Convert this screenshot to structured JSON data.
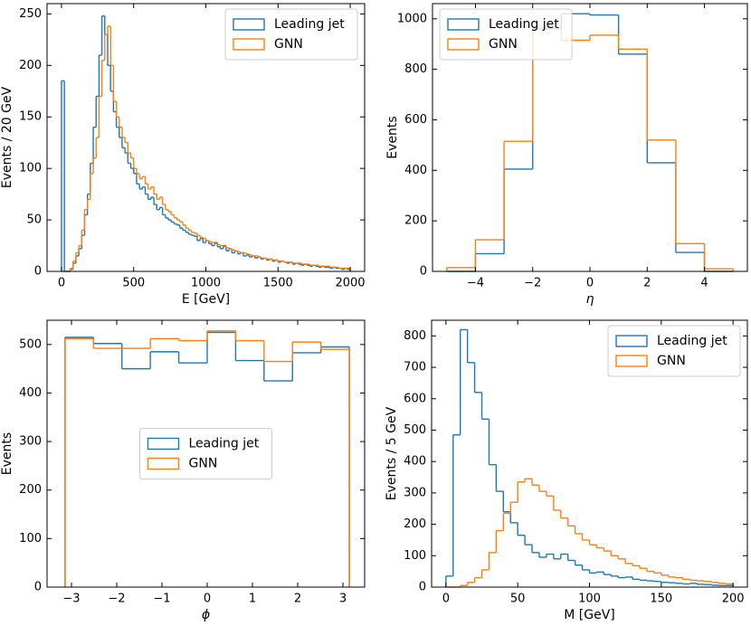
{
  "chart_data": [
    {
      "type": "histogram",
      "xlabel": "E [GeV]",
      "ylabel": "Events / 20 GeV",
      "legend": "upper right",
      "xlim": [
        -100,
        2100
      ],
      "ylim": [
        0,
        260
      ],
      "xticks": [
        0,
        500,
        1000,
        1500,
        2000
      ],
      "yticks": [
        0,
        50,
        100,
        150,
        200,
        250
      ],
      "bins": [
        0,
        20,
        40,
        60,
        80,
        100,
        120,
        140,
        160,
        180,
        200,
        220,
        240,
        260,
        280,
        300,
        320,
        340,
        360,
        380,
        400,
        420,
        440,
        460,
        480,
        500,
        520,
        540,
        560,
        580,
        600,
        620,
        640,
        660,
        680,
        700,
        720,
        740,
        760,
        780,
        800,
        820,
        840,
        860,
        880,
        900,
        920,
        940,
        960,
        980,
        1000,
        1020,
        1040,
        1060,
        1080,
        1100,
        1120,
        1140,
        1160,
        1180,
        1200,
        1220,
        1240,
        1260,
        1280,
        1300,
        1320,
        1340,
        1360,
        1380,
        1400,
        1420,
        1440,
        1460,
        1480,
        1500,
        1520,
        1540,
        1560,
        1580,
        1600,
        1620,
        1640,
        1660,
        1680,
        1700,
        1720,
        1740,
        1760,
        1780,
        1800,
        1820,
        1840,
        1860,
        1880,
        1900,
        1920,
        1940,
        1960,
        1980,
        2000
      ],
      "series": [
        {
          "name": "Leading jet",
          "color": "#1f77b4",
          "values": [
            185,
            0,
            0,
            2,
            8,
            15,
            22,
            35,
            55,
            75,
            105,
            140,
            170,
            210,
            248,
            230,
            200,
            175,
            155,
            140,
            130,
            120,
            115,
            105,
            100,
            95,
            85,
            80,
            82,
            75,
            70,
            72,
            65,
            60,
            62,
            55,
            52,
            50,
            48,
            46,
            45,
            42,
            40,
            38,
            36,
            35,
            34,
            30,
            32,
            28,
            30,
            27,
            25,
            28,
            24,
            22,
            25,
            20,
            22,
            18,
            20,
            17,
            18,
            15,
            16,
            14,
            15,
            13,
            14,
            12,
            13,
            11,
            12,
            10,
            11,
            9,
            10,
            9,
            8,
            9,
            7,
            8,
            7,
            6,
            7,
            6,
            5,
            6,
            5,
            4,
            5,
            4,
            4,
            3,
            4,
            3,
            3,
            2,
            3,
            2
          ]
        },
        {
          "name": "GNN",
          "color": "#ff7f0e",
          "values": [
            0,
            0,
            0,
            3,
            10,
            18,
            25,
            40,
            60,
            70,
            95,
            110,
            130,
            170,
            205,
            230,
            238,
            200,
            165,
            150,
            140,
            130,
            125,
            115,
            110,
            100,
            95,
            90,
            92,
            85,
            80,
            82,
            75,
            70,
            72,
            65,
            60,
            58,
            55,
            52,
            50,
            48,
            45,
            42,
            40,
            38,
            37,
            35,
            33,
            32,
            30,
            29,
            28,
            27,
            26,
            25,
            24,
            23,
            22,
            21,
            20,
            19,
            18,
            18,
            17,
            16,
            15,
            15,
            14,
            13,
            13,
            12,
            12,
            11,
            11,
            10,
            10,
            9,
            9,
            9,
            8,
            8,
            8,
            7,
            7,
            7,
            6,
            6,
            6,
            5,
            5,
            5,
            5,
            4,
            4,
            4,
            3,
            3,
            3,
            3
          ]
        }
      ]
    },
    {
      "type": "histogram",
      "xlabel": "η",
      "ylabel": "Events",
      "legend": "upper left",
      "xlim": [
        -5.5,
        5.5
      ],
      "ylim": [
        0,
        1060
      ],
      "xticks": [
        {
          "value": -4,
          "label": "−4"
        },
        {
          "value": -2,
          "label": "−2"
        },
        0,
        2,
        4
      ],
      "yticks": [
        0,
        200,
        400,
        600,
        800,
        1000
      ],
      "bins": [
        -5,
        -4,
        -3,
        -2,
        -1,
        0,
        1,
        2,
        3,
        4,
        5
      ],
      "series": [
        {
          "name": "Leading jet",
          "color": "#1f77b4",
          "values": [
            0,
            70,
            405,
            960,
            1020,
            1015,
            860,
            430,
            75,
            0
          ]
        },
        {
          "name": "GNN",
          "color": "#ff7f0e",
          "values": [
            15,
            125,
            515,
            965,
            915,
            935,
            880,
            520,
            110,
            10
          ]
        }
      ]
    },
    {
      "type": "histogram",
      "xlabel": "ϕ",
      "ylabel": "Events",
      "legend": "center",
      "xlim": [
        -3.54,
        3.48
      ],
      "ylim": [
        0,
        550
      ],
      "xticks": [
        {
          "value": -3,
          "label": "−3"
        },
        {
          "value": -2,
          "label": "−2"
        },
        {
          "value": -1,
          "label": "−1"
        },
        0,
        1,
        2,
        3
      ],
      "yticks": [
        0,
        100,
        200,
        300,
        400,
        500
      ],
      "bins": [
        -3.1416,
        -2.5133,
        -1.885,
        -1.2566,
        -0.6283,
        0,
        0.6283,
        1.2566,
        1.885,
        2.5133,
        3.1416
      ],
      "series": [
        {
          "name": "Leading jet",
          "color": "#1f77b4",
          "values": [
            515,
            502,
            450,
            485,
            462,
            525,
            467,
            425,
            483,
            495
          ]
        },
        {
          "name": "GNN",
          "color": "#ff7f0e",
          "values": [
            512,
            492,
            492,
            512,
            508,
            528,
            508,
            465,
            505,
            490
          ]
        }
      ]
    },
    {
      "type": "histogram",
      "xlabel": "M [GeV]",
      "ylabel": "Events / 5 GeV",
      "legend": "upper right",
      "xlim": [
        -10,
        210
      ],
      "ylim": [
        0,
        850
      ],
      "xticks": [
        0,
        50,
        100,
        150,
        200
      ],
      "yticks": [
        0,
        100,
        200,
        300,
        400,
        500,
        600,
        700,
        800
      ],
      "bins": [
        0,
        5,
        10,
        15,
        20,
        25,
        30,
        35,
        40,
        45,
        50,
        55,
        60,
        65,
        70,
        75,
        80,
        85,
        90,
        95,
        100,
        105,
        110,
        115,
        120,
        125,
        130,
        135,
        140,
        145,
        150,
        155,
        160,
        165,
        170,
        175,
        180,
        185,
        190,
        195,
        200
      ],
      "series": [
        {
          "name": "Leading jet",
          "color": "#1f77b4",
          "values": [
            35,
            485,
            820,
            715,
            620,
            535,
            390,
            305,
            240,
            205,
            165,
            135,
            110,
            95,
            105,
            90,
            105,
            85,
            70,
            55,
            45,
            48,
            40,
            35,
            30,
            32,
            25,
            22,
            20,
            18,
            15,
            14,
            12,
            10,
            12,
            9,
            8,
            6,
            5,
            5
          ]
        },
        {
          "name": "GNN",
          "color": "#ff7f0e",
          "values": [
            0,
            0,
            5,
            15,
            30,
            55,
            110,
            180,
            235,
            270,
            335,
            345,
            325,
            305,
            290,
            245,
            220,
            195,
            170,
            150,
            135,
            125,
            115,
            100,
            90,
            75,
            68,
            60,
            50,
            45,
            38,
            32,
            30,
            25,
            22,
            20,
            18,
            15,
            12,
            10
          ]
        }
      ]
    }
  ]
}
